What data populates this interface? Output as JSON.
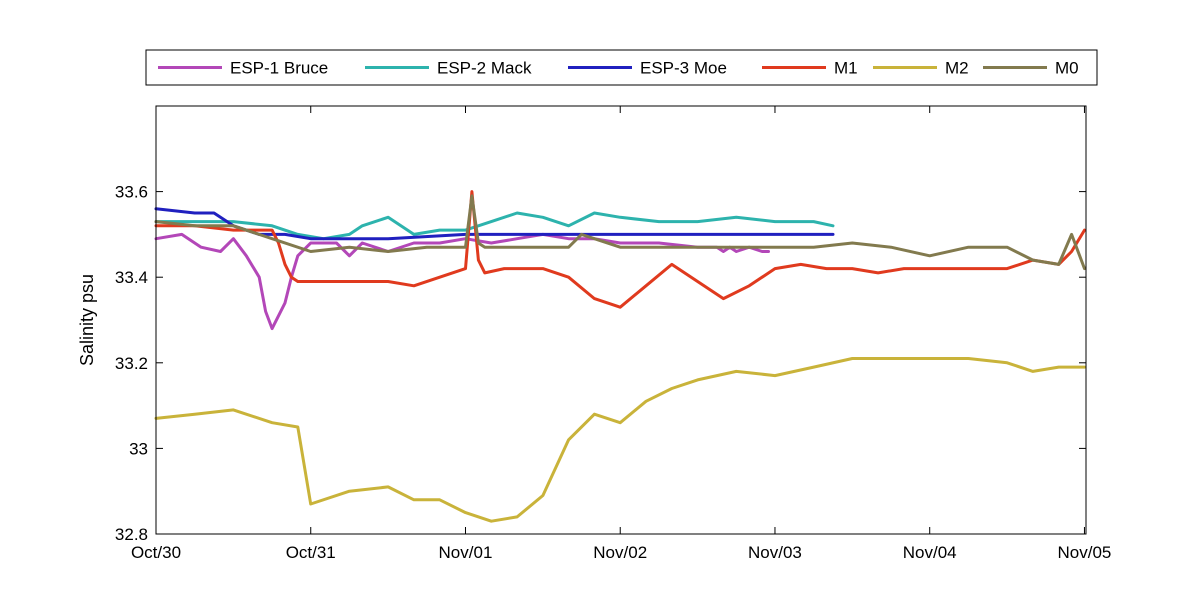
{
  "chart_data": {
    "type": "line",
    "ylabel": "Salinity psu",
    "xlabel": "",
    "ylim": [
      32.8,
      33.8
    ],
    "xlim": [
      "Oct/30",
      "Nov/05"
    ],
    "y_ticks": [
      "32.8",
      "33",
      "33.2",
      "33.4",
      "33.6"
    ],
    "x_ticks": [
      "Oct/30",
      "Oct/31",
      "Nov/01",
      "Nov/02",
      "Nov/03",
      "Nov/04",
      "Nov/05"
    ],
    "legend": "top, horizontal, outside plot",
    "series": [
      {
        "name": "ESP-1 Bruce",
        "color": "#B347B8",
        "x": [
          "Oct/30 00:00",
          "Oct/30 04:00",
          "Oct/30 07:00",
          "Oct/30 10:00",
          "Oct/30 12:00",
          "Oct/30 14:00",
          "Oct/30 16:00",
          "Oct/30 17:00",
          "Oct/30 18:00",
          "Oct/30 20:00",
          "Oct/30 21:00",
          "Oct/30 22:00",
          "Oct/31 00:00",
          "Oct/31 04:00",
          "Oct/31 06:00",
          "Oct/31 08:00",
          "Oct/31 12:00",
          "Oct/31 16:00",
          "Oct/31 20:00",
          "Nov/01 00:00",
          "Nov/01 04:00",
          "Nov/01 08:00",
          "Nov/01 12:00",
          "Nov/01 16:00",
          "Nov/01 20:00",
          "Nov/02 00:00",
          "Nov/02 06:00",
          "Nov/02 12:00",
          "Nov/02 15:00",
          "Nov/02 16:00",
          "Nov/02 17:00",
          "Nov/02 18:00",
          "Nov/02 20:00",
          "Nov/02 22:00",
          "Nov/02 23:00"
        ],
        "y": [
          33.49,
          33.5,
          33.47,
          33.46,
          33.49,
          33.45,
          33.4,
          33.32,
          33.28,
          33.34,
          33.4,
          33.45,
          33.48,
          33.48,
          33.45,
          33.48,
          33.46,
          33.48,
          33.48,
          33.49,
          33.48,
          33.49,
          33.5,
          33.49,
          33.49,
          33.48,
          33.48,
          33.47,
          33.47,
          33.46,
          33.47,
          33.46,
          33.47,
          33.46,
          33.46
        ]
      },
      {
        "name": "ESP-2 Mack",
        "color": "#2DB3AD",
        "x": [
          "Oct/30 00:00",
          "Oct/30 06:00",
          "Oct/30 12:00",
          "Oct/30 18:00",
          "Oct/30 22:00",
          "Oct/31 02:00",
          "Oct/31 06:00",
          "Oct/31 08:00",
          "Oct/31 12:00",
          "Oct/31 16:00",
          "Oct/31 20:00",
          "Nov/01 00:00",
          "Nov/01 04:00",
          "Nov/01 08:00",
          "Nov/01 12:00",
          "Nov/01 16:00",
          "Nov/01 20:00",
          "Nov/02 00:00",
          "Nov/02 06:00",
          "Nov/02 12:00",
          "Nov/02 18:00",
          "Nov/03 00:00",
          "Nov/03 06:00",
          "Nov/03 09:00"
        ],
        "y": [
          33.53,
          33.53,
          33.53,
          33.52,
          33.5,
          33.49,
          33.5,
          33.52,
          33.54,
          33.5,
          33.51,
          33.51,
          33.53,
          33.55,
          33.54,
          33.52,
          33.55,
          33.54,
          33.53,
          33.53,
          33.54,
          33.53,
          33.53,
          33.52
        ]
      },
      {
        "name": "ESP-3 Moe",
        "color": "#2020BF",
        "x": [
          "Oct/30 00:00",
          "Oct/30 06:00",
          "Oct/30 09:00",
          "Oct/30 12:00",
          "Oct/30 16:00",
          "Oct/30 20:00",
          "Oct/31 00:00",
          "Oct/31 06:00",
          "Oct/31 12:00",
          "Nov/01 00:00",
          "Nov/01 12:00",
          "Nov/02 00:00",
          "Nov/02 12:00",
          "Nov/03 00:00",
          "Nov/03 09:00"
        ],
        "y": [
          33.56,
          33.55,
          33.55,
          33.52,
          33.5,
          33.5,
          33.49,
          33.49,
          33.49,
          33.5,
          33.5,
          33.5,
          33.5,
          33.5,
          33.5
        ]
      },
      {
        "name": "M1",
        "color": "#E03A1E",
        "x": [
          "Oct/30 00:00",
          "Oct/30 06:00",
          "Oct/30 12:00",
          "Oct/30 18:00",
          "Oct/30 19:00",
          "Oct/30 20:00",
          "Oct/30 21:00",
          "Oct/30 22:00",
          "Oct/31 00:00",
          "Oct/31 06:00",
          "Oct/31 12:00",
          "Oct/31 16:00",
          "Oct/31 20:00",
          "Nov/01 00:00",
          "Nov/01 01:00",
          "Nov/01 02:00",
          "Nov/01 03:00",
          "Nov/01 06:00",
          "Nov/01 12:00",
          "Nov/01 16:00",
          "Nov/01 20:00",
          "Nov/02 00:00",
          "Nov/02 04:00",
          "Nov/02 08:00",
          "Nov/02 12:00",
          "Nov/02 16:00",
          "Nov/02 20:00",
          "Nov/03 00:00",
          "Nov/03 04:00",
          "Nov/03 08:00",
          "Nov/03 12:00",
          "Nov/03 16:00",
          "Nov/03 20:00",
          "Nov/04 00:00",
          "Nov/04 06:00",
          "Nov/04 12:00",
          "Nov/04 16:00",
          "Nov/04 20:00",
          "Nov/04 22:00",
          "Nov/05 00:00"
        ],
        "y": [
          33.52,
          33.52,
          33.51,
          33.51,
          33.48,
          33.43,
          33.4,
          33.39,
          33.39,
          33.39,
          33.39,
          33.38,
          33.4,
          33.42,
          33.6,
          33.44,
          33.41,
          33.42,
          33.42,
          33.4,
          33.35,
          33.33,
          33.38,
          33.43,
          33.39,
          33.35,
          33.38,
          33.42,
          33.43,
          33.42,
          33.42,
          33.41,
          33.42,
          33.42,
          33.42,
          33.42,
          33.44,
          33.43,
          33.46,
          33.51
        ]
      },
      {
        "name": "M2",
        "color": "#C9B33A",
        "x": [
          "Oct/30 00:00",
          "Oct/30 06:00",
          "Oct/30 12:00",
          "Oct/30 18:00",
          "Oct/30 22:00",
          "Oct/31 00:00",
          "Oct/31 06:00",
          "Oct/31 12:00",
          "Oct/31 16:00",
          "Oct/31 20:00",
          "Nov/01 00:00",
          "Nov/01 04:00",
          "Nov/01 08:00",
          "Nov/01 12:00",
          "Nov/01 16:00",
          "Nov/01 20:00",
          "Nov/02 00:00",
          "Nov/02 04:00",
          "Nov/02 08:00",
          "Nov/02 12:00",
          "Nov/02 18:00",
          "Nov/03 00:00",
          "Nov/03 06:00",
          "Nov/03 12:00",
          "Nov/03 18:00",
          "Nov/04 00:00",
          "Nov/04 06:00",
          "Nov/04 12:00",
          "Nov/04 16:00",
          "Nov/04 20:00",
          "Nov/05 00:00"
        ],
        "y": [
          33.07,
          33.08,
          33.09,
          33.06,
          33.05,
          32.87,
          32.9,
          32.91,
          32.88,
          32.88,
          32.85,
          32.83,
          32.84,
          32.89,
          33.02,
          33.08,
          33.06,
          33.11,
          33.14,
          33.16,
          33.18,
          33.17,
          33.19,
          33.21,
          33.21,
          33.21,
          33.21,
          33.2,
          33.18,
          33.19,
          33.19
        ]
      },
      {
        "name": "M0",
        "color": "#827A4E",
        "x": [
          "Oct/30 00:00",
          "Oct/30 06:00",
          "Oct/30 12:00",
          "Oct/30 18:00",
          "Oct/31 00:00",
          "Oct/31 06:00",
          "Oct/31 12:00",
          "Oct/31 18:00",
          "Nov/01 00:00",
          "Nov/01 01:00",
          "Nov/01 02:00",
          "Nov/01 03:00",
          "Nov/01 06:00",
          "Nov/01 12:00",
          "Nov/01 16:00",
          "Nov/01 18:00",
          "Nov/02 00:00",
          "Nov/02 06:00",
          "Nov/02 12:00",
          "Nov/02 18:00",
          "Nov/03 00:00",
          "Nov/03 06:00",
          "Nov/03 12:00",
          "Nov/03 18:00",
          "Nov/04 00:00",
          "Nov/04 06:00",
          "Nov/04 12:00",
          "Nov/04 16:00",
          "Nov/04 20:00",
          "Nov/04 22:00",
          "Nov/05 00:00"
        ],
        "y": [
          33.53,
          33.52,
          33.52,
          33.49,
          33.46,
          33.47,
          33.46,
          33.47,
          33.47,
          33.59,
          33.48,
          33.47,
          33.47,
          33.47,
          33.47,
          33.5,
          33.47,
          33.47,
          33.47,
          33.47,
          33.47,
          33.47,
          33.48,
          33.47,
          33.45,
          33.47,
          33.47,
          33.44,
          33.43,
          33.5,
          33.42
        ]
      }
    ]
  }
}
